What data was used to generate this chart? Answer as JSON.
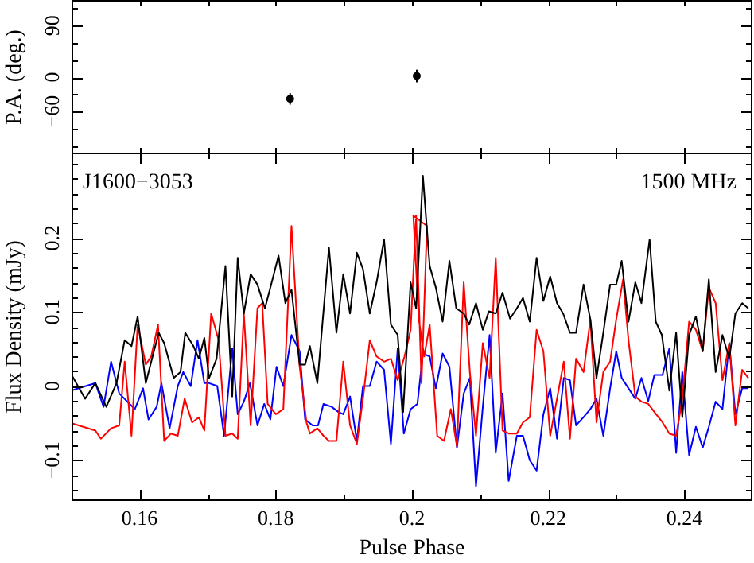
{
  "chart_data": [
    {
      "type": "scatter",
      "ylabel": "P.A. (deg.)",
      "xlim": [
        0.15,
        0.25
      ],
      "xticks": [
        {
          "value": 0.16,
          "label": null
        },
        {
          "value": 0.17,
          "label": null
        },
        {
          "value": 0.18,
          "label": null
        },
        {
          "value": 0.19,
          "label": null
        },
        {
          "value": 0.2,
          "label": null
        },
        {
          "value": 0.21,
          "label": null
        },
        {
          "value": 0.22,
          "label": null
        },
        {
          "value": 0.23,
          "label": null
        },
        {
          "value": 0.24,
          "label": null
        }
      ],
      "ylim": [
        -135,
        135
      ],
      "yticks": [
        {
          "value": -120,
          "label": null
        },
        {
          "value": -90,
          "label": null
        },
        {
          "value": -60,
          "label": "−60"
        },
        {
          "value": -30,
          "label": null
        },
        0,
        {
          "value": 30,
          "label": null
        },
        {
          "value": 60,
          "label": null
        },
        90,
        {
          "value": 120,
          "label": null
        }
      ],
      "tick_labels": "y",
      "marker": "circle",
      "series": [
        {
          "color": "#000000",
          "x": [
            0.1821,
            0.2007
          ],
          "values": [
            -38,
            2
          ],
          "errors": [
            10,
            11
          ]
        }
      ]
    },
    {
      "type": "line",
      "xlabel": "Pulse Phase",
      "ylabel": "Flux Density (mJy)",
      "xlim": [
        0.15,
        0.25
      ],
      "xticks": [
        0.16,
        {
          "value": 0.17,
          "label": null
        },
        0.18,
        {
          "value": 0.19,
          "label": null
        },
        0.2,
        {
          "value": 0.21,
          "label": null
        },
        0.22,
        {
          "value": 0.23,
          "label": null
        },
        0.24
      ],
      "ylim": [
        -0.155,
        0.315
      ],
      "yticks": [
        {
          "value": -0.14,
          "label": null
        },
        {
          "value": -0.12,
          "label": null
        },
        {
          "value": -0.1,
          "label": "−0.1"
        },
        {
          "value": -0.08,
          "label": null
        },
        {
          "value": -0.06,
          "label": null
        },
        {
          "value": -0.04,
          "label": null
        },
        {
          "value": -0.02,
          "label": null
        },
        0,
        {
          "value": 0.02,
          "label": null
        },
        {
          "value": 0.04,
          "label": null
        },
        {
          "value": 0.06,
          "label": null
        },
        {
          "value": 0.08,
          "label": null
        },
        0.1,
        {
          "value": 0.12,
          "label": null
        },
        {
          "value": 0.14,
          "label": null
        },
        {
          "value": 0.16,
          "label": null
        },
        {
          "value": 0.18,
          "label": null
        },
        0.2,
        {
          "value": 0.22,
          "label": null
        },
        {
          "value": 0.24,
          "label": null
        },
        {
          "value": 0.26,
          "label": null
        },
        {
          "value": 0.28,
          "label": null
        },
        {
          "value": 0.3,
          "label": null
        }
      ],
      "annotations": [
        "J1600−3053",
        "1500 MHz"
      ],
      "series": [
        {
          "color": "#000000",
          "x": [
            0.15,
            0.152,
            0.1535,
            0.1551,
            0.1566,
            0.1578,
            0.1588,
            0.1597,
            0.1609,
            0.1617,
            0.1628,
            0.1636,
            0.165,
            0.166,
            0.1667,
            0.1679,
            0.1687,
            0.1695,
            0.1702,
            0.1713,
            0.1726,
            0.1736,
            0.1744,
            0.1753,
            0.1763,
            0.1773,
            0.1784,
            0.1794,
            0.1804,
            0.1814,
            0.1823,
            0.1835,
            0.1843,
            0.185,
            0.1861,
            0.1878,
            0.1889,
            0.1899,
            0.1909,
            0.1919,
            0.1928,
            0.1938,
            0.1948,
            0.1959,
            0.1969,
            0.1979,
            0.1987,
            0.1998,
            0.2006,
            0.2016,
            0.2026,
            0.2035,
            0.2045,
            0.2055,
            0.2065,
            0.2076,
            0.2084,
            0.2094,
            0.2104,
            0.2113,
            0.2123,
            0.2133,
            0.2144,
            0.2154,
            0.2163,
            0.2173,
            0.2183,
            0.2193,
            0.2203,
            0.2213,
            0.2222,
            0.2232,
            0.2241,
            0.2252,
            0.2262,
            0.2271,
            0.2281,
            0.2291,
            0.23,
            0.2308,
            0.2318,
            0.2328,
            0.2337,
            0.2349,
            0.2358,
            0.2367,
            0.2378,
            0.2388,
            0.2397,
            0.2407,
            0.2417,
            0.2427,
            0.2436,
            0.2446,
            0.2456,
            0.2466,
            0.2475,
            0.2485,
            0.2494
          ],
          "values": [
            0.015,
            -0.017,
            0.004,
            -0.028,
            0.004,
            0.062,
            0.054,
            0.094,
            0.004,
            0.033,
            0.072,
            0.058,
            0.011,
            0.019,
            0.072,
            0.054,
            0.037,
            0.065,
            0.011,
            0.037,
            0.162,
            -0.014,
            0.173,
            0.098,
            0.151,
            0.137,
            0.105,
            0.14,
            0.176,
            0.112,
            0.13,
            0.029,
            0.029,
            0.054,
            0.004,
            0.187,
            0.072,
            0.151,
            0.098,
            0.18,
            0.158,
            0.098,
            0.14,
            0.198,
            0.083,
            0.069,
            -0.035,
            0.14,
            0.105,
            0.284,
            0.162,
            0.133,
            0.087,
            0.169,
            0.105,
            0.098,
            0.083,
            0.112,
            0.076,
            0.101,
            0.098,
            0.126,
            0.091,
            0.105,
            0.119,
            0.087,
            0.173,
            0.115,
            0.148,
            0.112,
            0.098,
            0.072,
            0.072,
            0.137,
            0.09,
            0.011,
            0.072,
            0.137,
            0.137,
            0.169,
            0.087,
            0.14,
            0.112,
            0.198,
            0.087,
            0.069,
            -0.006,
            0.072,
            -0.042,
            0.069,
            0.094,
            0.047,
            0.144,
            0.019,
            0.069,
            0.037,
            0.098,
            0.112,
            0.105
          ]
        },
        {
          "color": "#ff0000",
          "x": [
            0.15,
            0.1535,
            0.1543,
            0.1558,
            0.157,
            0.1578,
            0.1588,
            0.1597,
            0.1609,
            0.1617,
            0.1627,
            0.1636,
            0.1646,
            0.1656,
            0.1666,
            0.1677,
            0.1687,
            0.1695,
            0.1705,
            0.1716,
            0.1726,
            0.1736,
            0.1744,
            0.1753,
            0.1763,
            0.1773,
            0.178,
            0.1788,
            0.18,
            0.1811,
            0.1823,
            0.1835,
            0.1845,
            0.185,
            0.1861,
            0.187,
            0.1878,
            0.1889,
            0.1899,
            0.1909,
            0.1919,
            0.1928,
            0.1938,
            0.1948,
            0.1959,
            0.1969,
            0.1979,
            0.1989,
            0.1998,
            0.2006,
            0.2014,
            0.2022,
            0.2002,
            0.201,
            0.2018,
            0.2026,
            0.2037,
            0.2047,
            0.2057,
            0.2066,
            0.2076,
            0.2085,
            0.2094,
            0.2104,
            0.2114,
            0.2123,
            0.2133,
            0.2142,
            0.2154,
            0.2163,
            0.2173,
            0.2183,
            0.2193,
            0.2203,
            0.2213,
            0.2223,
            0.2232,
            0.2241,
            0.2252,
            0.2262,
            0.2271,
            0.2281,
            0.2291,
            0.23,
            0.231,
            0.2318,
            0.2328,
            0.2337,
            0.2347,
            0.2356,
            0.2368,
            0.2378,
            0.2388,
            0.2397,
            0.2407,
            0.2417,
            0.2427,
            0.2436,
            0.2446,
            0.2456,
            0.2466,
            0.2475,
            0.2485,
            0.2494
          ],
          "values": [
            -0.05,
            -0.06,
            -0.071,
            -0.057,
            -0.053,
            0.033,
            -0.067,
            0.083,
            0.029,
            0.04,
            0.083,
            -0.074,
            -0.064,
            -0.067,
            -0.017,
            -0.049,
            -0.042,
            -0.06,
            0.098,
            0.062,
            -0.067,
            -0.064,
            -0.071,
            0.098,
            -0.053,
            0.105,
            0.112,
            -0.024,
            -0.038,
            -0.031,
            0.216,
            0.026,
            -0.049,
            -0.064,
            -0.057,
            -0.067,
            -0.074,
            -0.074,
            0.033,
            -0.053,
            -0.078,
            -0.017,
            0.062,
            0.04,
            0.033,
            0.037,
            0.008,
            0.04,
            0.076,
            0.23,
            0.004,
            0.216,
            0.23,
            0.09,
            0.04,
            0.083,
            -0.067,
            -0.074,
            -0.031,
            -0.081,
            0.14,
            0.019,
            -0.067,
            0.058,
            0.011,
            0.173,
            -0.06,
            -0.064,
            -0.064,
            -0.049,
            -0.042,
            0.076,
            0.047,
            -0.067,
            -0.017,
            0.033,
            -0.071,
            0.037,
            0.019,
            0.09,
            -0.049,
            0.019,
            0.033,
            0.09,
            0.144,
            0.062,
            -0.014,
            -0.021,
            -0.024,
            -0.035,
            -0.049,
            -0.064,
            -0.067,
            -0.017,
            0.087,
            0.076,
            0.047,
            0.133,
            0.112,
            0.008,
            0.058,
            -0.053,
            0.022,
            0.011
          ]
        },
        {
          "color": "#0000ff",
          "x": [
            0.15,
            0.1535,
            0.1547,
            0.1558,
            0.157,
            0.1582,
            0.1593,
            0.1605,
            0.1613,
            0.1625,
            0.1632,
            0.1644,
            0.1656,
            0.1664,
            0.1675,
            0.1685,
            0.1695,
            0.1702,
            0.1714,
            0.1724,
            0.1736,
            0.1744,
            0.1753,
            0.1762,
            0.1773,
            0.1783,
            0.1792,
            0.1801,
            0.1811,
            0.1823,
            0.1835,
            0.1843,
            0.1854,
            0.1862,
            0.187,
            0.1882,
            0.1892,
            0.1899,
            0.1909,
            0.1919,
            0.1928,
            0.1938,
            0.1948,
            0.1959,
            0.1969,
            0.1979,
            0.1988,
            0.1998,
            0.2008,
            0.2016,
            0.2026,
            0.2035,
            0.2045,
            0.2055,
            0.2066,
            0.2076,
            0.2085,
            0.2094,
            0.2104,
            0.2114,
            0.2123,
            0.2133,
            0.2142,
            0.2154,
            0.2163,
            0.2173,
            0.2183,
            0.2193,
            0.2203,
            0.2213,
            0.2223,
            0.2232,
            0.2241,
            0.2252,
            0.2262,
            0.2271,
            0.2281,
            0.2291,
            0.23,
            0.2308,
            0.2318,
            0.2328,
            0.2337,
            0.2347,
            0.2356,
            0.2368,
            0.2378,
            0.2388,
            0.2397,
            0.2407,
            0.2417,
            0.2427,
            0.2436,
            0.2446,
            0.2456,
            0.2466,
            0.2475,
            0.2485,
            0.2494
          ],
          "values": [
            -0.006,
            0.004,
            -0.028,
            0.033,
            -0.01,
            -0.021,
            -0.031,
            -0.003,
            -0.045,
            -0.028,
            0.004,
            -0.057,
            0.0,
            0.019,
            0.0,
            0.062,
            0.004,
            0.004,
            0.0,
            -0.067,
            0.051,
            -0.038,
            -0.021,
            0.004,
            -0.053,
            -0.024,
            -0.045,
            0.026,
            0.0,
            0.069,
            0.047,
            -0.045,
            -0.053,
            -0.053,
            -0.024,
            -0.028,
            -0.035,
            -0.038,
            -0.014,
            -0.074,
            0.0,
            0.0,
            0.033,
            0.022,
            -0.078,
            0.051,
            -0.064,
            -0.031,
            -0.024,
            0.044,
            0.04,
            -0.003,
            0.044,
            0.026,
            -0.083,
            -0.01,
            0.011,
            -0.135,
            -0.028,
            0.069,
            -0.09,
            -0.01,
            -0.128,
            -0.067,
            -0.067,
            -0.1,
            -0.114,
            -0.038,
            -0.003,
            -0.071,
            0.011,
            0.008,
            -0.053,
            -0.042,
            -0.031,
            -0.017,
            -0.067,
            -0.003,
            0.047,
            0.011,
            -0.003,
            -0.017,
            0.011,
            -0.02,
            0.015,
            0.015,
            0.051,
            -0.09,
            0.019,
            -0.093,
            -0.055,
            -0.083,
            -0.055,
            -0.021,
            -0.031,
            0.058,
            -0.038,
            -0.003,
            -0.003
          ]
        }
      ]
    }
  ]
}
